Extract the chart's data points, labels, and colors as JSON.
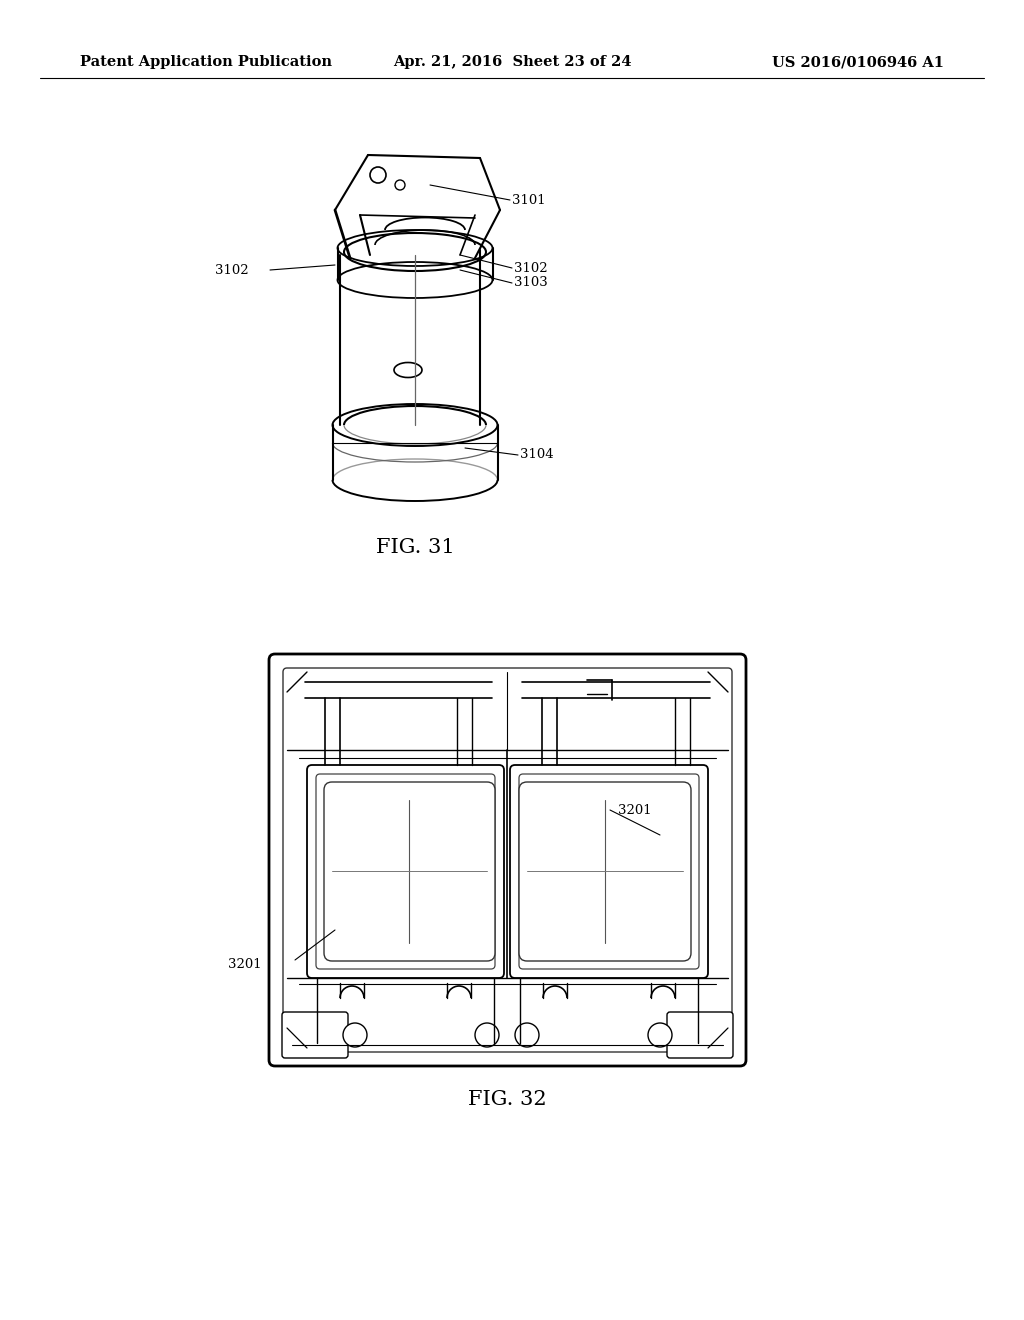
{
  "background_color": "#ffffff",
  "header_left": "Patent Application Publication",
  "header_center": "Apr. 21, 2016  Sheet 23 of 24",
  "header_right": "US 2016/0106946 A1",
  "fig31_caption": "FIG. 31",
  "fig32_caption": "FIG. 32",
  "line_color": "#000000",
  "text_color": "#000000",
  "header_fontsize": 10.5,
  "label_fontsize": 9.5,
  "caption_fontsize": 15
}
